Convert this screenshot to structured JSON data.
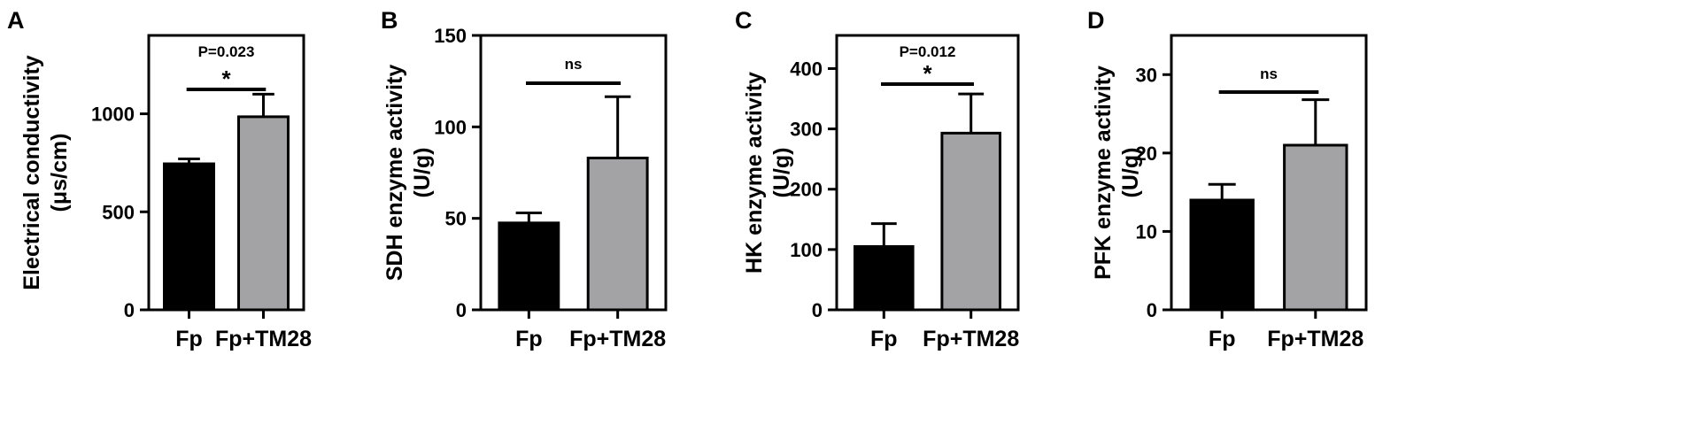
{
  "chart_data": [
    {
      "type": "bar",
      "panel_label": "A",
      "categories": [
        "Fp",
        "Fp+TM28"
      ],
      "values": [
        745,
        985
      ],
      "error": [
        25,
        115
      ],
      "bar_colors": [
        "#000000",
        "#a3a3a6"
      ],
      "ylabel": "Electrical conductivity",
      "ylabel_unit": "(μs/cm)",
      "ylim": [
        0,
        1400
      ],
      "yticks": [
        0,
        500,
        1000
      ],
      "significance": {
        "text": "P=0.023",
        "marker": "*"
      }
    },
    {
      "type": "bar",
      "panel_label": "B",
      "categories": [
        "Fp",
        "Fp+TM28"
      ],
      "values": [
        47.5,
        83
      ],
      "error": [
        5.5,
        33.5
      ],
      "bar_colors": [
        "#000000",
        "#a3a3a6"
      ],
      "ylabel": "SDH enzyme activity",
      "ylabel_unit": "(U/g)",
      "ylim": [
        0,
        150
      ],
      "yticks": [
        0,
        50,
        100,
        150
      ],
      "significance": {
        "text": "ns",
        "marker": ""
      }
    },
    {
      "type": "bar",
      "panel_label": "C",
      "categories": [
        "Fp",
        "Fp+TM28"
      ],
      "values": [
        105,
        293
      ],
      "error": [
        38,
        65
      ],
      "bar_colors": [
        "#000000",
        "#a3a3a6"
      ],
      "ylabel": "HK enzyme activity",
      "ylabel_unit": "(U/g)",
      "ylim": [
        0,
        455
      ],
      "yticks": [
        0,
        100,
        200,
        300,
        400
      ],
      "significance": {
        "text": "P=0.012",
        "marker": "*"
      }
    },
    {
      "type": "bar",
      "panel_label": "D",
      "categories": [
        "Fp",
        "Fp+TM28"
      ],
      "values": [
        14,
        21
      ],
      "error": [
        2,
        5.8
      ],
      "bar_colors": [
        "#000000",
        "#a3a3a6"
      ],
      "ylabel": "PFK enzyme activity",
      "ylabel_unit": "(U/g)",
      "ylim": [
        0,
        35
      ],
      "yticks": [
        0,
        10,
        20,
        30
      ],
      "significance": {
        "text": "ns",
        "marker": ""
      }
    }
  ]
}
